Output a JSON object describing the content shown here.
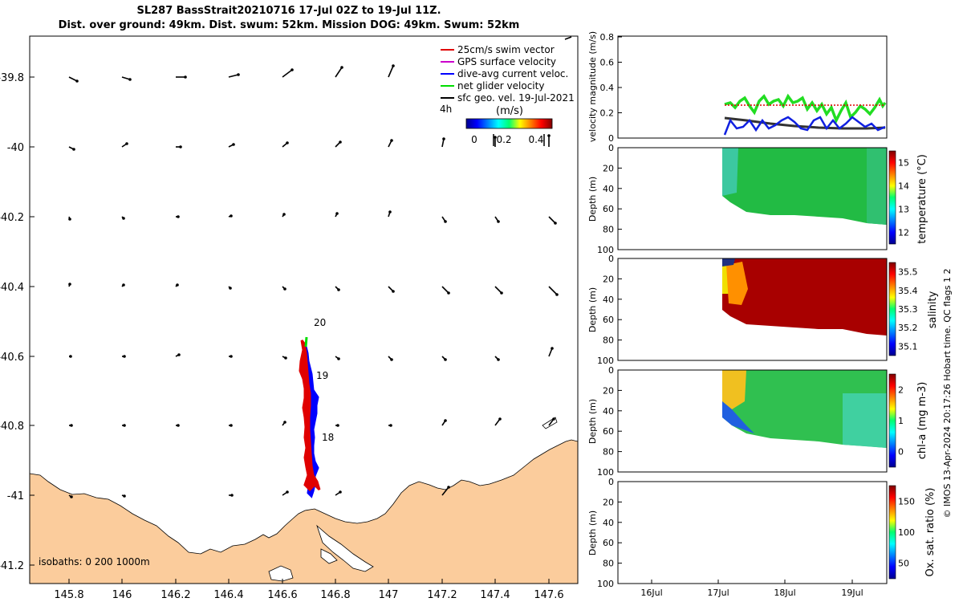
{
  "title_line1": "SL287 BassStrait20210716 17-Jul 02Z to 19-Jul 11Z.",
  "title_line2": "Dist. over ground: 49km. Dist. swum: 52km. Mission DOG: 49km. Swum: 52km",
  "legend": {
    "items": [
      {
        "label": "25cm/s swim vector",
        "color": "#e00000"
      },
      {
        "label": "GPS surface velocity",
        "color": "#cc00cc"
      },
      {
        "label": "dive-avg current veloc.",
        "color": "#0000ff"
      },
      {
        "label": "net glider velocity",
        "color": "#00dd00"
      },
      {
        "label": "sfc geo. vel. 19-Jul-2021",
        "color": "#000000"
      }
    ],
    "colorbar_prefix": "4h",
    "colorbar_unit": "(m/s)",
    "colorbar_ticks": [
      "0",
      "0.2",
      "0.4"
    ]
  },
  "map": {
    "x_ticks": [
      "145.8",
      "146",
      "146.2",
      "146.4",
      "146.6",
      "146.8",
      "147",
      "147.2",
      "147.4",
      "147.6"
    ],
    "y_ticks": [
      "-39.8",
      "-40",
      "-40.2",
      "-40.4",
      "-40.6",
      "-40.8",
      "-41",
      "-41.2"
    ],
    "day_labels": [
      "20",
      "19",
      "18"
    ],
    "isobaths_text": "isobaths: 0   200  1000m",
    "land_color": "#fbcc9c"
  },
  "right_panels": {
    "velocity": {
      "ylabel": "velocity magnitude (m/s)",
      "y_ticks": [
        "0",
        "0.2",
        "0.4",
        "0.6",
        "0.8"
      ]
    },
    "depth_ylabel": "Depth (m)",
    "depth_ticks": [
      "0",
      "20",
      "40",
      "60",
      "80",
      "100"
    ],
    "temperature": {
      "cblabel": "temperature (°C)",
      "cb_ticks": [
        "12",
        "13",
        "14",
        "15"
      ]
    },
    "salinity": {
      "cblabel": "salinity",
      "cb_ticks": [
        "35.1",
        "35.2",
        "35.3",
        "35.4",
        "35.5"
      ]
    },
    "chla": {
      "cblabel": "chl-a (mg m-3)",
      "cb_ticks": [
        "0",
        "1",
        "2"
      ]
    },
    "oxygen": {
      "cblabel": "Ox. sat. ratio (%)",
      "cb_ticks": [
        "50",
        "100",
        "150"
      ]
    },
    "x_ticks": [
      "16Jul",
      "17Jul",
      "18Jul",
      "19Jul"
    ]
  },
  "footer_note": "© IMOS 13-Apr-2024 20:17:26 Hobart time. QC flags 1  2",
  "chart_data": [
    {
      "type": "scatter",
      "title": "SL287 BassStrait20210716 17-Jul 02Z to 19-Jul 11Z.",
      "xlabel": "",
      "ylabel": "",
      "xlim": [
        145.65,
        147.72
      ],
      "ylim": [
        -41.24,
        -39.68
      ],
      "series": [
        {
          "name": "net glider velocity",
          "x": [
            146.68
          ],
          "y": [
            -40.54
          ]
        },
        {
          "name": "dive-avg current veloc.",
          "x": [
            146.7,
            146.72,
            146.74,
            146.73,
            146.72
          ],
          "y": [
            -40.58,
            -40.65,
            -40.75,
            -40.88,
            -41.0
          ]
        },
        {
          "name": "25cm/s swim vector",
          "x": [
            146.68,
            146.69,
            146.7,
            146.7,
            146.72
          ],
          "y": [
            -40.55,
            -40.65,
            -40.75,
            -40.88,
            -40.98
          ]
        }
      ]
    },
    {
      "type": "line",
      "ylabel": "velocity magnitude (m/s)",
      "ylim": [
        0,
        0.8
      ],
      "x": [
        "17Jul",
        "18Jul",
        "19Jul"
      ],
      "series": [
        {
          "name": "net glider velocity",
          "values": [
            0.25,
            0.27,
            0.26
          ]
        },
        {
          "name": "dive-avg current veloc.",
          "values": [
            0.1,
            0.11,
            0.09
          ]
        },
        {
          "name": "sfc geo. vel. 19-Jul-2021",
          "values": [
            0.16,
            0.1,
            0.07
          ]
        }
      ]
    }
  ]
}
